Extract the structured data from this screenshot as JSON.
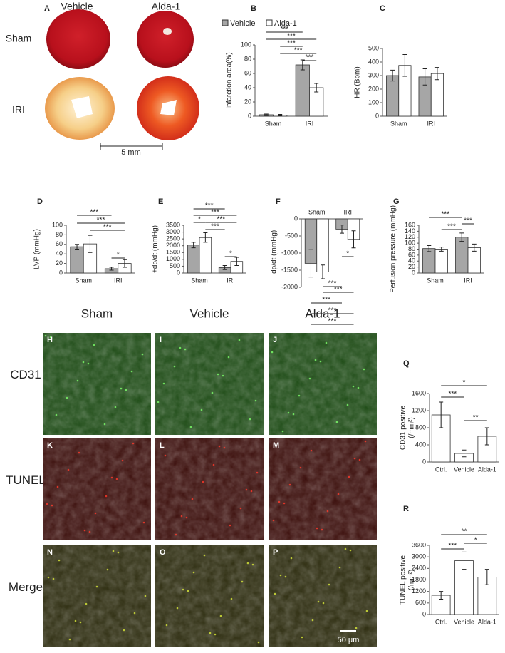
{
  "photos": {
    "panel": "A",
    "columns": [
      "Vehicle",
      "Alda-1"
    ],
    "rows": [
      "Sham",
      "IRI"
    ],
    "scale_bar": "5 mm"
  },
  "micrographs": {
    "columns": [
      "Sham",
      "Vehicle",
      "Alda-1"
    ],
    "rows": [
      "CD31",
      "TUNEL",
      "Merge"
    ],
    "panels": [
      "H",
      "I",
      "J",
      "K",
      "L",
      "M",
      "N",
      "O",
      "P"
    ],
    "scale_bar": "50 μm"
  },
  "chart_data": [
    {
      "type": "bar",
      "panel": "B",
      "ylabel": [
        "Infarction area(%)"
      ],
      "categories": [
        "Sham",
        "IRI"
      ],
      "legend": true,
      "series": [
        {
          "name": "Vehicle",
          "color": "#a6a6a6",
          "values": [
            2,
            72
          ],
          "errors": [
            1,
            7
          ]
        },
        {
          "name": "Alda-1",
          "color": "#ffffff",
          "values": [
            1.5,
            40
          ],
          "errors": [
            1,
            6
          ]
        }
      ],
      "ylim": [
        0,
        100
      ],
      "yticks": [
        0,
        20,
        40,
        60,
        80,
        100
      ],
      "significance": [
        "***",
        "***",
        "***",
        "***",
        "***"
      ]
    },
    {
      "type": "bar",
      "panel": "C",
      "ylabel": [
        "HR (Bpm)"
      ],
      "categories": [
        "Sham",
        "IRI"
      ],
      "series": [
        {
          "color": "#a6a6a6",
          "values": [
            300,
            290
          ],
          "errors": [
            40,
            60
          ]
        },
        {
          "color": "#ffffff",
          "values": [
            375,
            315
          ],
          "errors": [
            80,
            45
          ]
        }
      ],
      "ylim": [
        0,
        500
      ],
      "yticks": [
        0,
        100,
        200,
        300,
        400,
        500
      ],
      "significance": []
    },
    {
      "type": "bar",
      "panel": "D",
      "ylabel": [
        "LVP (mmHg)"
      ],
      "categories": [
        "Sham",
        "IRI"
      ],
      "series": [
        {
          "color": "#a6a6a6",
          "values": [
            55,
            9
          ],
          "errors": [
            5,
            3
          ]
        },
        {
          "color": "#ffffff",
          "values": [
            61,
            20
          ],
          "errors": [
            18,
            8
          ]
        }
      ],
      "ylim": [
        0,
        100
      ],
      "yticks": [
        0,
        20,
        40,
        60,
        80,
        100
      ],
      "significance": [
        "***",
        "***",
        "***",
        "*"
      ]
    },
    {
      "type": "bar",
      "panel": "E",
      "ylabel": [
        "+dp/dt (mmHg)"
      ],
      "categories": [
        "Sham",
        "IRI"
      ],
      "series": [
        {
          "color": "#a6a6a6",
          "values": [
            2050,
            400
          ],
          "errors": [
            200,
            150
          ]
        },
        {
          "color": "#ffffff",
          "values": [
            2600,
            850
          ],
          "errors": [
            350,
            300
          ]
        }
      ],
      "ylim": [
        0,
        3500
      ],
      "yticks": [
        0,
        500,
        1000,
        1500,
        2000,
        2500,
        3000,
        3500
      ],
      "significance": [
        "***",
        "***",
        "*",
        "***",
        "***",
        "*"
      ]
    },
    {
      "type": "bar",
      "panel": "F",
      "ylabel": [
        "-dp/dt (mmHg)"
      ],
      "categories": [
        "Sham",
        "IRI"
      ],
      "series": [
        {
          "color": "#a6a6a6",
          "values": [
            -1300,
            -300
          ],
          "errors": [
            400,
            120
          ]
        },
        {
          "color": "#ffffff",
          "values": [
            -1550,
            -600
          ],
          "errors": [
            200,
            250
          ]
        }
      ],
      "ylim": [
        -2000,
        0
      ],
      "yticks": [
        0,
        -500,
        -1000,
        -1500,
        -2000
      ],
      "significance": [
        "*",
        "***",
        "***",
        "***",
        "***",
        "***"
      ]
    },
    {
      "type": "bar",
      "panel": "G",
      "ylabel": [
        "Perfusion pressure (mmHg)"
      ],
      "categories": [
        "Sham",
        "IRI"
      ],
      "series": [
        {
          "color": "#a6a6a6",
          "values": [
            82,
            120
          ],
          "errors": [
            10,
            14
          ]
        },
        {
          "color": "#ffffff",
          "values": [
            80,
            85
          ],
          "errors": [
            7,
            12
          ]
        }
      ],
      "ylim": [
        0,
        160
      ],
      "yticks": [
        0,
        20,
        40,
        60,
        80,
        100,
        120,
        140,
        160
      ],
      "significance": [
        "***",
        "***",
        "***"
      ]
    },
    {
      "type": "bar",
      "panel": "Q",
      "ylabel": [
        "CD31 positive",
        "(/mm²)"
      ],
      "categories": [
        "Ctrl.",
        "Vehicle",
        "Alda-1"
      ],
      "series": [
        {
          "color": "#ffffff",
          "values": [
            1100,
            200,
            600
          ],
          "errors": [
            300,
            80,
            200
          ]
        }
      ],
      "ylim": [
        0,
        1600
      ],
      "yticks": [
        0,
        400,
        800,
        1200,
        1600
      ],
      "significance": [
        "***",
        "*",
        "**"
      ]
    },
    {
      "type": "bar",
      "panel": "R",
      "ylabel": [
        "TUNEL positive",
        "(/mm²)"
      ],
      "categories": [
        "Ctrl.",
        "Vehicle",
        "Alda-1"
      ],
      "series": [
        {
          "color": "#ffffff",
          "values": [
            1000,
            2800,
            1950
          ],
          "errors": [
            200,
            450,
            400
          ]
        }
      ],
      "ylim": [
        0,
        3600
      ],
      "yticks": [
        0,
        600,
        1200,
        1800,
        2400,
        3000,
        3600
      ],
      "significance": [
        "***",
        "**",
        "*"
      ]
    }
  ]
}
